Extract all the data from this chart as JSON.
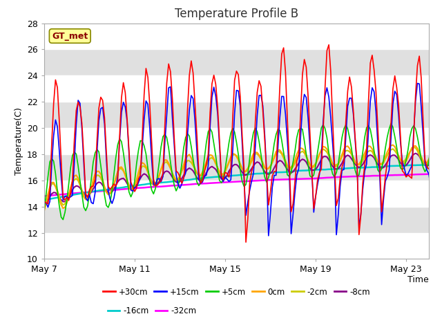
{
  "title": "Temperature Profile B",
  "xlabel": "Time",
  "ylabel": "Temperature(C)",
  "ylim": [
    10,
    28
  ],
  "yticks": [
    10,
    12,
    14,
    16,
    18,
    20,
    22,
    24,
    26,
    28
  ],
  "xtick_labels": [
    "May 7",
    "May 11",
    "May 15",
    "May 19",
    "May 23"
  ],
  "xtick_positions": [
    0,
    4,
    8,
    12,
    16
  ],
  "xlim": [
    0,
    17
  ],
  "gt_met_label": "GT_met",
  "series_order": [
    "+30cm",
    "+15cm",
    "+5cm",
    "0cm",
    "-2cm",
    "-8cm",
    "-16cm",
    "-32cm"
  ],
  "series": {
    "+30cm": {
      "color": "#FF0000",
      "lw": 1.2
    },
    "+15cm": {
      "color": "#0000FF",
      "lw": 1.2
    },
    "+5cm": {
      "color": "#00CC00",
      "lw": 1.2
    },
    "0cm": {
      "color": "#FFA500",
      "lw": 1.5
    },
    "-2cm": {
      "color": "#CCCC00",
      "lw": 1.5
    },
    "-8cm": {
      "color": "#880088",
      "lw": 1.5
    },
    "-16cm": {
      "color": "#00CCCC",
      "lw": 1.8
    },
    "-32cm": {
      "color": "#FF00FF",
      "lw": 1.8
    }
  },
  "bg_color": "#FFFFFF",
  "plot_bg_color": "#E0E0E0",
  "band_color": "#FFFFFF",
  "legend_box_color": "#FFFF99",
  "legend_box_edge": "#888800",
  "legend_row1": [
    "+30cm",
    "+15cm",
    "+5cm",
    "0cm",
    "-2cm",
    "-8cm"
  ],
  "legend_row2": [
    "-16cm",
    "-32cm"
  ]
}
